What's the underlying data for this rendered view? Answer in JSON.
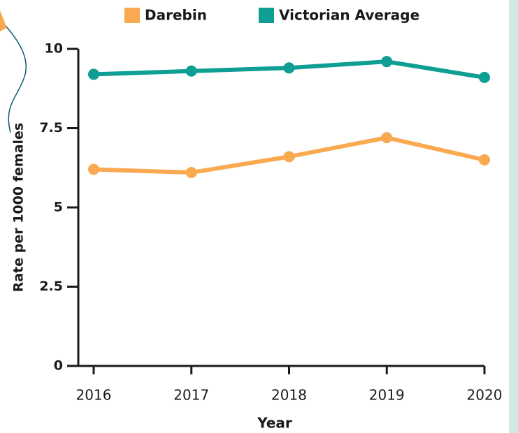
{
  "chart_data": {
    "type": "line",
    "x": [
      2016,
      2017,
      2018,
      2019,
      2020
    ],
    "xlim": [
      2016,
      2020
    ],
    "xticks": [
      2016,
      2017,
      2018,
      2019,
      2020
    ],
    "ylim": [
      0,
      10
    ],
    "yticks": [
      0,
      2.5,
      5,
      7.5,
      10
    ],
    "x_label": "Year",
    "y_label": "Rate per 1000 females",
    "series": [
      {
        "name": "Darebin",
        "color": "#f9a94f",
        "values": [
          6.2,
          6.1,
          6.6,
          7.2,
          6.5
        ]
      },
      {
        "name": "Victorian Average",
        "color": "#0e9e94",
        "values": [
          9.2,
          9.3,
          9.4,
          9.6,
          9.1
        ]
      }
    ]
  }
}
